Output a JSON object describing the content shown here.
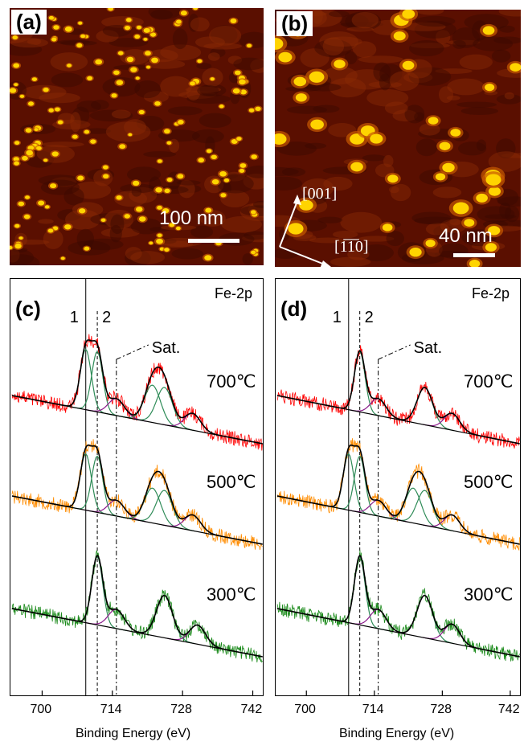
{
  "figure": {
    "panels": {
      "a": {
        "label": "(a)",
        "scale_bar": "100 nm"
      },
      "b": {
        "label": "(b)",
        "scale_bar": "40 nm",
        "dir_001": "[001]",
        "dir_110": "[1̅1̅0]",
        "dir_110_plain": "[110]"
      },
      "c": {
        "label": "(c)",
        "core_level": "Fe-2p",
        "marker_1": "1",
        "marker_2": "2",
        "sat_label": "Sat."
      },
      "d": {
        "label": "(d)",
        "core_level": "Fe-2p",
        "marker_1": "1",
        "marker_2": "2",
        "sat_label": "Sat."
      }
    },
    "temperatures": [
      "700℃",
      "500℃",
      "300℃"
    ],
    "x_axis_label": "Binding Energy (eV)",
    "x_ticks": [
      "700",
      "714",
      "728",
      "742"
    ],
    "colors": {
      "stm_background": "#5a0f00",
      "stm_features": "#ffd400",
      "trace_700": "#ff0000",
      "trace_500": "#ff8c00",
      "trace_300": "#1a8a1a",
      "fit_envelope": "#000000",
      "fit_component": "#2e8b57",
      "fit_satellite": "#8b1a8b"
    }
  },
  "chart_data": [
    {
      "type": "line",
      "panel": "c",
      "core_level": "Fe-2p",
      "xlabel": "Binding Energy (eV)",
      "xlim": [
        694,
        744
      ],
      "xticks": [
        700,
        714,
        728,
        742
      ],
      "reference_lines": {
        "1": 708.7,
        "2": 711.0,
        "Sat.": 714.8
      },
      "series": [
        {
          "name": "700℃",
          "peaks": [
            708.7,
            711.0,
            714.8,
            722.0,
            724.4,
            730.0
          ]
        },
        {
          "name": "500℃",
          "peaks": [
            708.7,
            711.0,
            714.8,
            722.0,
            724.4,
            730.0
          ]
        },
        {
          "name": "300℃",
          "peaks": [
            711.0,
            714.8,
            724.4,
            731.0
          ]
        }
      ]
    },
    {
      "type": "line",
      "panel": "d",
      "core_level": "Fe-2p",
      "xlabel": "Binding Energy (eV)",
      "xlim": [
        694,
        744
      ],
      "xticks": [
        700,
        714,
        728,
        742
      ],
      "reference_lines": {
        "1": 708.7,
        "2": 711.0,
        "Sat.": 714.8
      },
      "series": [
        {
          "name": "700℃",
          "peaks": [
            711.0,
            714.8,
            724.4,
            730.0
          ]
        },
        {
          "name": "500℃",
          "peaks": [
            708.7,
            711.0,
            714.8,
            722.0,
            724.4,
            730.0
          ]
        },
        {
          "name": "300℃",
          "peaks": [
            711.0,
            714.8,
            724.4,
            730.0
          ]
        }
      ]
    }
  ]
}
